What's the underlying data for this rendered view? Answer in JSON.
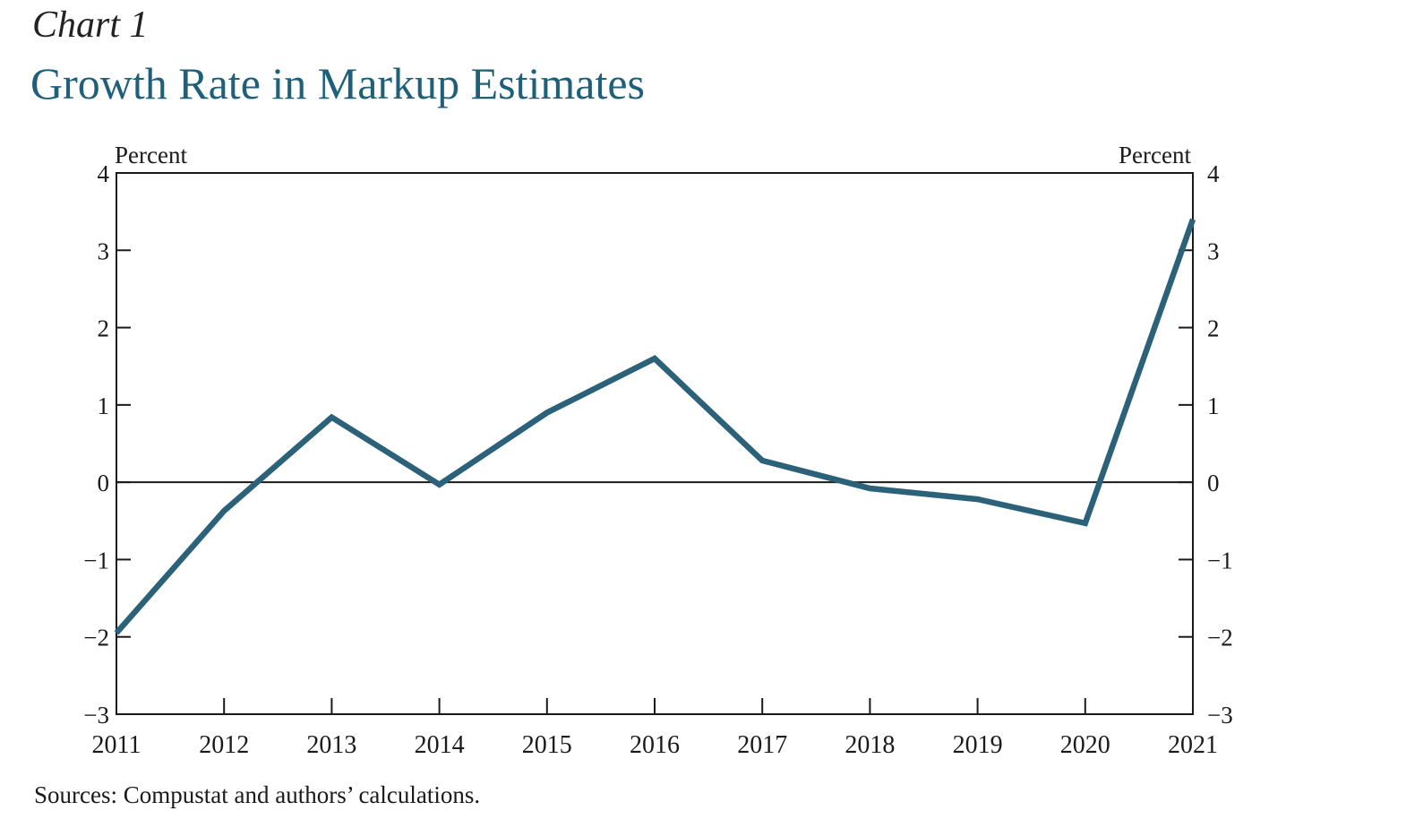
{
  "header": {
    "chart_number": "Chart 1",
    "title": "Growth Rate in Markup Estimates"
  },
  "footer": {
    "sources": "Sources: Compustat and authors’ calculations."
  },
  "colors": {
    "line": "#2b6179",
    "title": "#1f5f7a",
    "axis": "#1a1a1a"
  },
  "chart_data": {
    "type": "line",
    "title": "Growth Rate in Markup Estimates",
    "xlabel": "",
    "ylabel_left": "Percent",
    "ylabel_right": "Percent",
    "x": [
      "2011",
      "2012",
      "2013",
      "2014",
      "2015",
      "2016",
      "2017",
      "2018",
      "2019",
      "2020",
      "2021"
    ],
    "series": [
      {
        "values": [
          -1.95,
          -0.37,
          0.84,
          -0.03,
          0.9,
          1.6,
          0.28,
          -0.08,
          -0.22,
          -0.53,
          3.4
        ]
      }
    ],
    "ylim": [
      -3,
      4
    ],
    "yticks": [
      4,
      3,
      2,
      1,
      0,
      -1,
      -2,
      -3
    ],
    "ytick_labels": [
      "4",
      "3",
      "2",
      "1",
      "0",
      "−1",
      "−2",
      "−3"
    ],
    "zero_line": true,
    "grid": false,
    "legend": "none"
  }
}
